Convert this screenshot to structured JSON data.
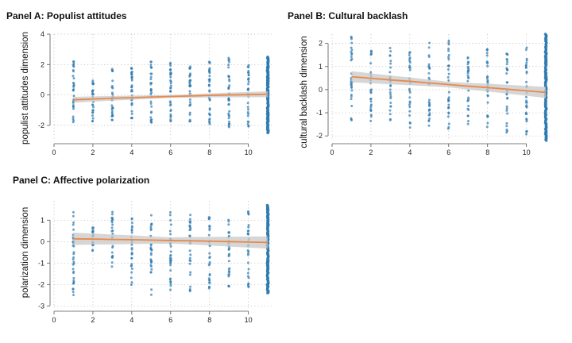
{
  "colors": {
    "points": "#2e7bb0",
    "fit_line": "#e8894a",
    "band": "#c8c8c8",
    "grid": "#b5b5b5",
    "axis": "#555555"
  },
  "chart_data": [
    {
      "type": "scatter",
      "title": "Panel A: Populist attitudes",
      "xlabel": "",
      "ylabel": "populist attitudes dimension",
      "xlim": [
        0,
        11.2
      ],
      "ylim": [
        -3,
        4
      ],
      "xticks": [
        0,
        2,
        4,
        6,
        8,
        10
      ],
      "yticks": [
        -2,
        0,
        2,
        4
      ],
      "grid": true,
      "x": [
        1,
        2,
        3,
        4,
        5,
        6,
        7,
        8,
        9,
        10,
        11
      ],
      "point_range": [
        [
          -2.0,
          2.6
        ],
        [
          -1.8,
          1.1
        ],
        [
          -1.8,
          1.9
        ],
        [
          -2.1,
          2.0
        ],
        [
          -2.0,
          2.4
        ],
        [
          -2.3,
          2.3
        ],
        [
          -2.0,
          2.1
        ],
        [
          -2.2,
          2.3
        ],
        [
          -2.2,
          2.8
        ],
        [
          -2.1,
          2.1
        ],
        [
          -2.5,
          2.5
        ]
      ],
      "fit": {
        "y": [
          -0.32,
          -0.27,
          -0.22,
          -0.18,
          -0.14,
          -0.1,
          -0.07,
          -0.03,
          0.0,
          0.02,
          0.05
        ],
        "band": 0.12
      }
    },
    {
      "type": "scatter",
      "title": "Panel B: Cultural backlash",
      "xlabel": "",
      "ylabel": "cultural backlash dimension",
      "xlim": [
        0,
        11.2
      ],
      "ylim": [
        -2.2,
        2.4
      ],
      "xticks": [
        0,
        2,
        4,
        6,
        8,
        10
      ],
      "yticks": [
        -2,
        -1,
        0,
        1,
        2
      ],
      "grid": true,
      "x": [
        1,
        2,
        3,
        4,
        5,
        6,
        7,
        8,
        9,
        10,
        11
      ],
      "point_range": [
        [
          -1.5,
          2.4
        ],
        [
          -1.5,
          1.9
        ],
        [
          -1.5,
          1.8
        ],
        [
          -1.7,
          1.7
        ],
        [
          -1.7,
          2.2
        ],
        [
          -1.9,
          2.2
        ],
        [
          -1.8,
          1.8
        ],
        [
          -1.8,
          1.8
        ],
        [
          -1.9,
          1.8
        ],
        [
          -2.0,
          2.3
        ],
        [
          -2.2,
          2.4
        ]
      ],
      "fit": {
        "y": [
          0.56,
          0.49,
          0.42,
          0.36,
          0.29,
          0.22,
          0.15,
          0.09,
          0.02,
          -0.05,
          -0.12
        ],
        "band": 0.15
      }
    },
    {
      "type": "scatter",
      "title": "Panel C: Affective polarization",
      "xlabel": "",
      "ylabel": "polarization dimension",
      "xlim": [
        0,
        11.2
      ],
      "ylim": [
        -3.1,
        1.9
      ],
      "xticks": [
        0,
        2,
        4,
        6,
        8,
        10
      ],
      "yticks": [
        -3,
        -2,
        -1,
        0,
        1
      ],
      "grid": true,
      "x": [
        1,
        2,
        3,
        4,
        5,
        6,
        7,
        8,
        9,
        10,
        11
      ],
      "point_range": [
        [
          -2.7,
          1.6
        ],
        [
          -0.5,
          1.2
        ],
        [
          -1.3,
          1.5
        ],
        [
          -2.3,
          1.3
        ],
        [
          -2.5,
          1.3
        ],
        [
          -2.4,
          1.5
        ],
        [
          -2.4,
          1.4
        ],
        [
          -2.3,
          1.4
        ],
        [
          -2.3,
          1.4
        ],
        [
          -2.3,
          1.5
        ],
        [
          -2.4,
          1.7
        ]
      ],
      "fit": {
        "y": [
          0.13,
          0.12,
          0.1,
          0.09,
          0.07,
          0.05,
          0.04,
          0.02,
          0.0,
          -0.02,
          -0.04
        ],
        "band": 0.18
      }
    }
  ]
}
